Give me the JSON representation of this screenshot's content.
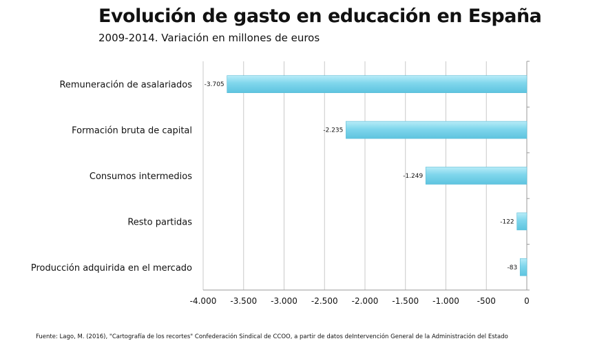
{
  "chart_data": {
    "type": "bar",
    "orientation": "horizontal",
    "title": "Evolución de gasto en educación en España",
    "subtitle": "2009-2014. Variación en millones de euros",
    "categories": [
      "Remuneración de asalariados",
      "Formación bruta de capital",
      "Consumos intermedios",
      "Resto partidas",
      "Producción adquirida en el mercado"
    ],
    "values": [
      -3705,
      -2235,
      -1249,
      -122,
      -83
    ],
    "value_labels": [
      "-3.705",
      "-2.235",
      "-1.249",
      "-122",
      "-83"
    ],
    "xlim": [
      -4000,
      0
    ],
    "xticks": [
      -4000,
      -3500,
      -3000,
      -2500,
      -2000,
      -1500,
      -1000,
      -500,
      0
    ],
    "xtick_labels": [
      "-4.000",
      "-3.500",
      "-3.000",
      "-2.500",
      "-2.000",
      "-1.500",
      "-1.000",
      "-500",
      "0"
    ],
    "bar_color": "#7fd6ec",
    "grid": true,
    "xlabel": "",
    "ylabel": ""
  },
  "footer": "Fuente: Lago, M. (2016), \"Cartografía de los recortes\" Confederación Sindical de CCOO, a partir de datos deIntervención General de la Administración del Estado"
}
